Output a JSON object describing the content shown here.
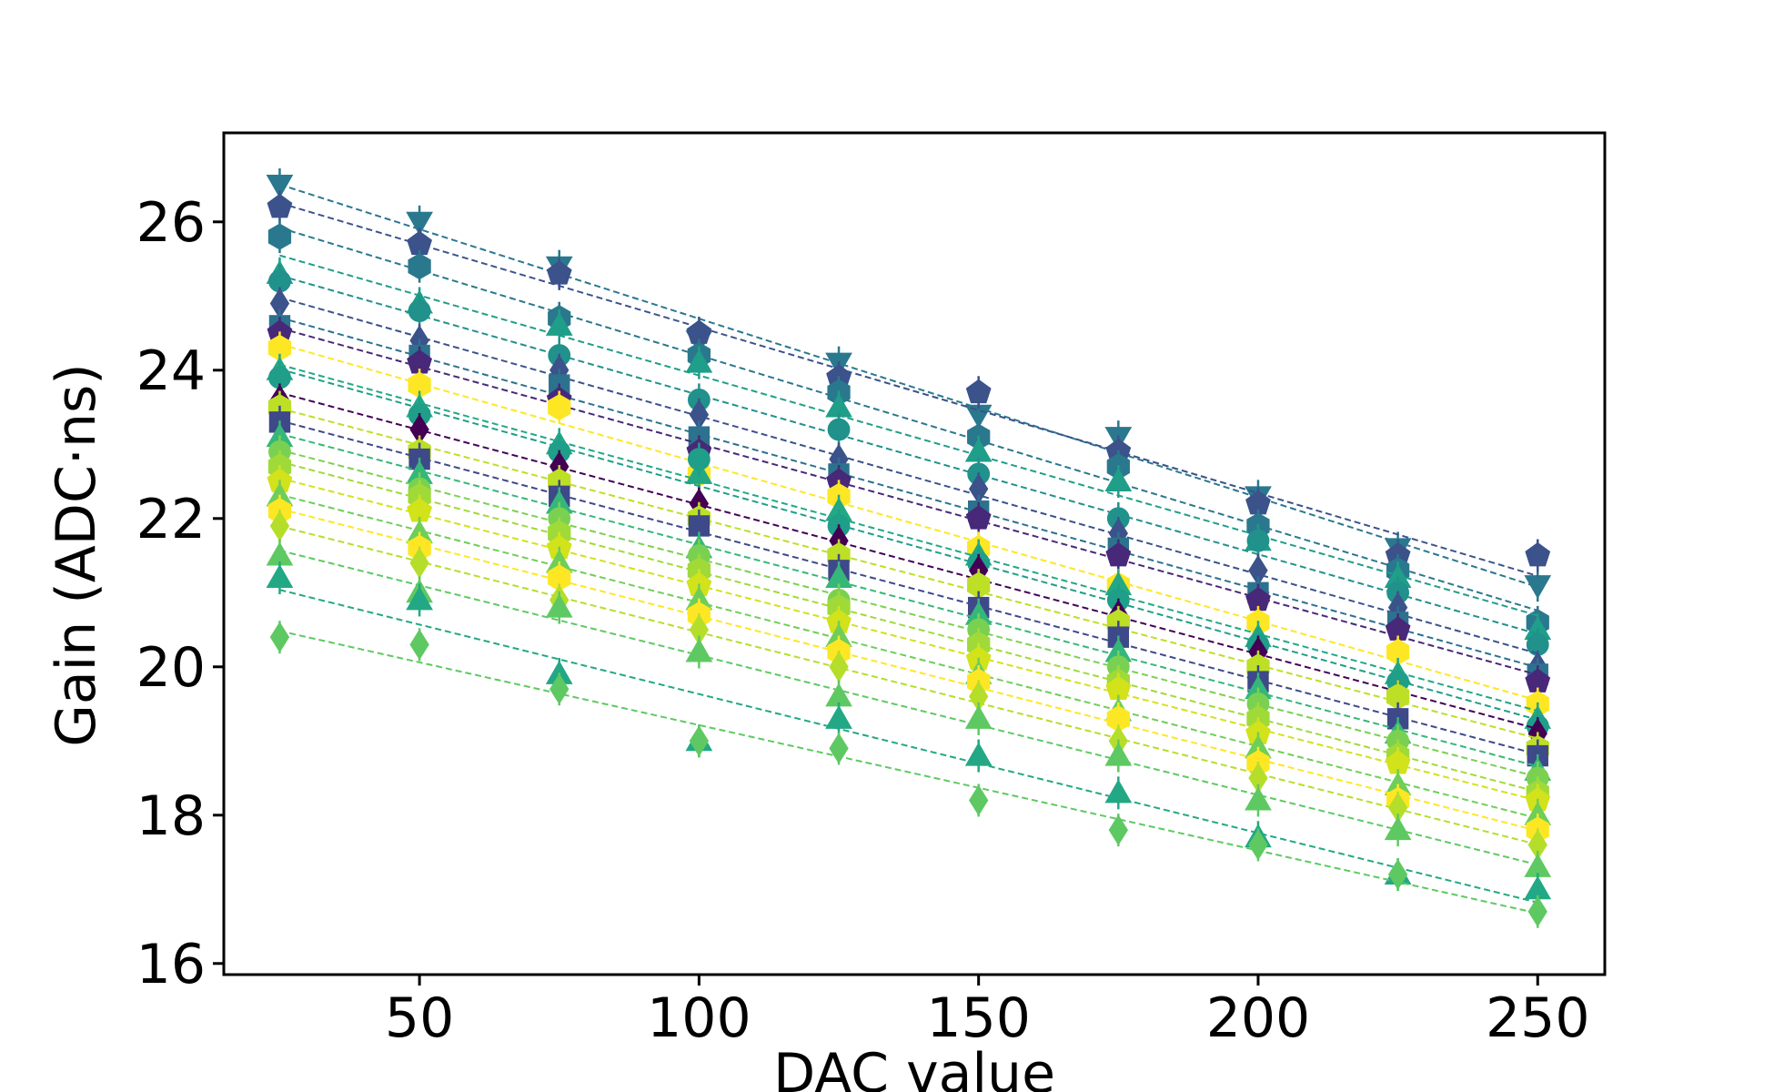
{
  "chart_data": {
    "type": "line",
    "title": "",
    "xlabel": "DAC value",
    "ylabel": "Gain (ADC·ns)",
    "xlim": [
      15,
      262
    ],
    "ylim": [
      15.85,
      27.2
    ],
    "x": [
      25,
      50,
      75,
      100,
      125,
      150,
      175,
      200,
      225,
      250
    ],
    "xticks": [
      50,
      100,
      150,
      200,
      250
    ],
    "xtick_labels": [
      "50",
      "100",
      "150",
      "200",
      "250"
    ],
    "yticks": [
      16,
      18,
      20,
      22,
      24,
      26
    ],
    "ytick_labels": [
      "16",
      "18",
      "20",
      "22",
      "24",
      "26"
    ],
    "grid": false,
    "legend": "none",
    "line_style": "dashed",
    "series": [
      {
        "marker": "triangle-down",
        "color": "#2a788e",
        "values": [
          26.5,
          26.0,
          25.4,
          24.4,
          24.1,
          23.4,
          23.1,
          22.3,
          21.6,
          21.1
        ]
      },
      {
        "marker": "pentagon",
        "color": "#3b528b",
        "values": [
          26.2,
          25.7,
          25.3,
          24.5,
          23.9,
          23.7,
          22.9,
          22.2,
          21.5,
          21.5
        ]
      },
      {
        "marker": "hexagon",
        "color": "#2a788e",
        "values": [
          25.8,
          25.4,
          24.7,
          24.2,
          23.7,
          23.1,
          22.7,
          21.9,
          21.3,
          20.6
        ]
      },
      {
        "marker": "triangle-up",
        "color": "#1f9e89",
        "values": [
          25.3,
          24.9,
          24.6,
          24.1,
          23.5,
          22.9,
          22.5,
          21.7,
          21.2,
          20.5
        ]
      },
      {
        "marker": "circle",
        "color": "#21918c",
        "values": [
          25.2,
          24.8,
          24.2,
          23.6,
          23.2,
          22.6,
          22.0,
          21.7,
          21.0,
          20.3
        ]
      },
      {
        "marker": "diamond",
        "color": "#3b528b",
        "values": [
          24.9,
          24.4,
          24.0,
          23.4,
          22.8,
          22.4,
          21.8,
          21.3,
          20.8,
          20.0
        ]
      },
      {
        "marker": "square",
        "color": "#2c728e",
        "values": [
          24.6,
          24.2,
          23.8,
          23.1,
          22.6,
          22.1,
          21.6,
          21.0,
          20.6,
          19.9
        ]
      },
      {
        "marker": "pentagon",
        "color": "#482878",
        "values": [
          24.5,
          24.1,
          23.6,
          22.9,
          22.5,
          22.0,
          21.5,
          20.9,
          20.5,
          19.8
        ]
      },
      {
        "marker": "hexagon",
        "color": "#fde725",
        "values": [
          24.3,
          23.8,
          23.5,
          22.6,
          22.3,
          21.6,
          21.1,
          20.6,
          20.2,
          19.5
        ]
      },
      {
        "marker": "triangle-up",
        "color": "#22a884",
        "values": [
          24.0,
          23.5,
          23.0,
          22.6,
          22.1,
          21.5,
          21.1,
          20.4,
          19.9,
          19.3
        ]
      },
      {
        "marker": "circle",
        "color": "#1f9e89",
        "values": [
          23.9,
          23.4,
          22.9,
          22.8,
          21.9,
          21.4,
          20.9,
          20.3,
          19.8,
          19.2
        ]
      },
      {
        "marker": "diamond",
        "color": "#440154",
        "values": [
          23.6,
          23.2,
          22.7,
          22.2,
          21.7,
          21.3,
          20.7,
          20.2,
          19.6,
          19.1
        ]
      },
      {
        "marker": "hexagon",
        "color": "#bddf26",
        "values": [
          23.5,
          22.9,
          22.5,
          22.0,
          21.5,
          21.1,
          20.6,
          20.0,
          19.6,
          18.9
        ]
      },
      {
        "marker": "square",
        "color": "#3e4989",
        "values": [
          23.3,
          22.8,
          22.3,
          21.9,
          21.3,
          20.8,
          20.4,
          19.8,
          19.3,
          18.8
        ]
      },
      {
        "marker": "triangle-up",
        "color": "#35b779",
        "values": [
          23.1,
          22.6,
          22.2,
          21.6,
          21.2,
          20.7,
          20.2,
          19.7,
          19.1,
          18.6
        ]
      },
      {
        "marker": "circle",
        "color": "#7ad151",
        "values": [
          22.9,
          22.4,
          22.0,
          21.5,
          20.9,
          20.5,
          20.0,
          19.5,
          19.0,
          18.5
        ]
      },
      {
        "marker": "hexagon",
        "color": "#a0da39",
        "values": [
          22.7,
          22.3,
          21.8,
          21.3,
          20.8,
          20.3,
          19.8,
          19.3,
          18.8,
          18.3
        ]
      },
      {
        "marker": "pentagon",
        "color": "#d2e21b",
        "values": [
          22.5,
          22.1,
          21.6,
          21.1,
          20.6,
          20.1,
          19.7,
          19.1,
          18.7,
          18.2
        ]
      },
      {
        "marker": "triangle-up",
        "color": "#6ece58",
        "values": [
          22.3,
          21.8,
          21.4,
          20.9,
          20.4,
          19.9,
          19.4,
          18.9,
          18.4,
          18.0
        ]
      },
      {
        "marker": "hexagon",
        "color": "#fde725",
        "values": [
          22.1,
          21.6,
          21.2,
          20.7,
          20.2,
          19.8,
          19.3,
          18.7,
          18.2,
          17.8
        ]
      },
      {
        "marker": "diamond",
        "color": "#b5de2b",
        "values": [
          21.9,
          21.4,
          20.9,
          20.5,
          20.0,
          19.6,
          19.0,
          18.5,
          18.1,
          17.6
        ]
      },
      {
        "marker": "triangle-up",
        "color": "#5ec962",
        "values": [
          21.5,
          21.0,
          20.8,
          20.2,
          19.6,
          19.3,
          18.8,
          18.2,
          17.8,
          17.3
        ]
      },
      {
        "marker": "triangle-up",
        "color": "#22a884",
        "values": [
          21.2,
          20.9,
          19.9,
          19.0,
          19.3,
          18.8,
          18.3,
          17.7,
          17.2,
          17.0
        ]
      },
      {
        "marker": "diamond",
        "color": "#5ec962",
        "values": [
          20.4,
          20.3,
          19.7,
          19.0,
          18.9,
          18.2,
          17.8,
          17.6,
          17.2,
          16.7
        ]
      }
    ]
  }
}
